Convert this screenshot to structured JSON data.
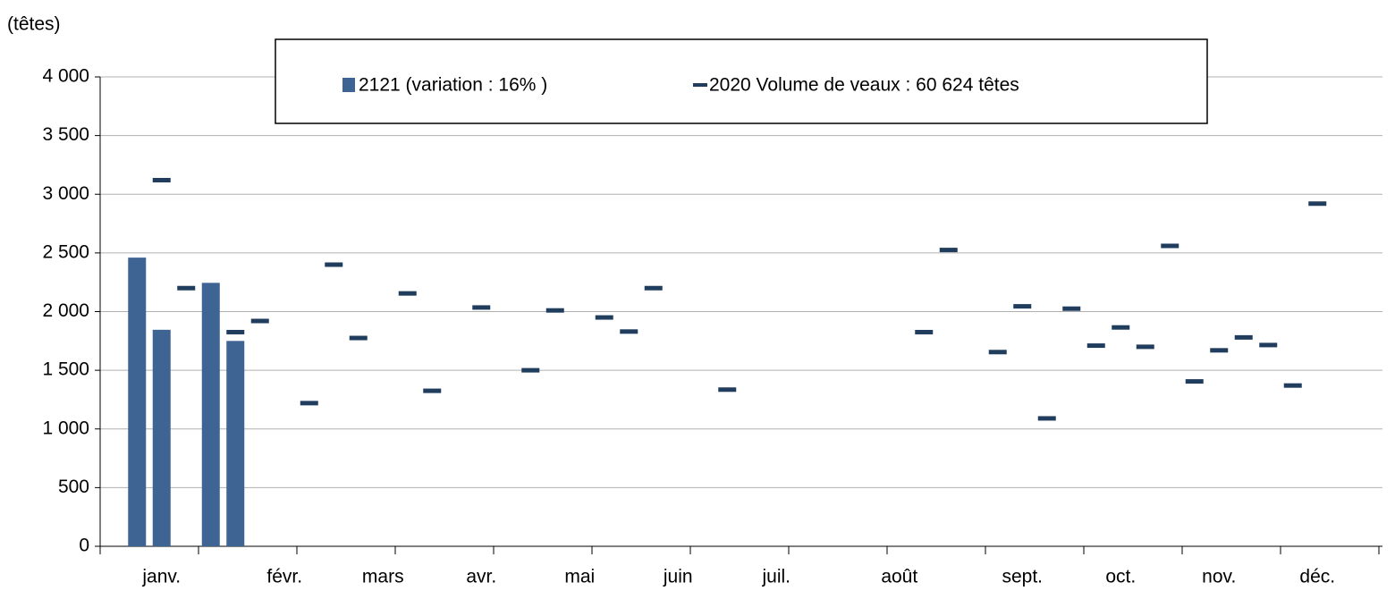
{
  "chart_data": {
    "type": "bar",
    "y_label": "(têtes)",
    "categories": [
      null,
      null,
      "janv.",
      null,
      null,
      null,
      null,
      "févr.",
      null,
      null,
      null,
      "mars",
      null,
      null,
      null,
      "avr.",
      null,
      null,
      null,
      "mai",
      null,
      null,
      null,
      "juin",
      null,
      null,
      null,
      "juil.",
      null,
      null,
      null,
      null,
      "août",
      null,
      null,
      null,
      null,
      "sept.",
      null,
      null,
      null,
      "oct.",
      null,
      null,
      null,
      "nov.",
      null,
      null,
      null,
      "déc.",
      null,
      null
    ],
    "series": [
      {
        "name": "2121 (variation : 16% )",
        "type": "bar",
        "color": "#3e6494",
        "values": [
          null,
          2460,
          1845,
          null,
          2245,
          1750,
          null,
          null,
          null,
          null,
          null,
          null,
          null,
          null,
          null,
          null,
          null,
          null,
          null,
          null,
          null,
          null,
          null,
          null,
          null,
          null,
          null,
          null,
          null,
          null,
          null,
          null,
          null,
          null,
          null,
          null,
          null,
          null,
          null,
          null,
          null,
          null,
          null,
          null,
          null,
          null,
          null,
          null,
          null,
          null,
          null,
          null
        ]
      },
      {
        "name": "2020 Volume de veaux : 60 624 têtes",
        "type": "dash",
        "color": "#203d5e",
        "values": [
          null,
          null,
          3120,
          2200,
          null,
          1825,
          1920,
          null,
          1220,
          2400,
          1775,
          null,
          2155,
          1325,
          null,
          2035,
          null,
          1500,
          2010,
          null,
          1950,
          1830,
          2200,
          null,
          null,
          1335,
          null,
          null,
          null,
          null,
          null,
          null,
          null,
          1825,
          2525,
          null,
          1655,
          2045,
          1090,
          2025,
          1710,
          1865,
          1700,
          2560,
          1405,
          1670,
          1780,
          1715,
          1370,
          2920,
          null,
          null
        ]
      }
    ],
    "ylim": [
      0,
      4000
    ],
    "yticks": [
      0,
      500,
      {
        "value": 1000,
        "label": "1 000"
      },
      {
        "value": 1500,
        "label": "1 500"
      },
      {
        "value": 2000,
        "label": "2 000"
      },
      {
        "value": 2500,
        "label": "2 500"
      },
      {
        "value": 3000,
        "label": "3 000"
      },
      {
        "value": 3500,
        "label": "3 500"
      },
      {
        "value": 4000,
        "label": "4 000"
      }
    ],
    "grid": true
  }
}
